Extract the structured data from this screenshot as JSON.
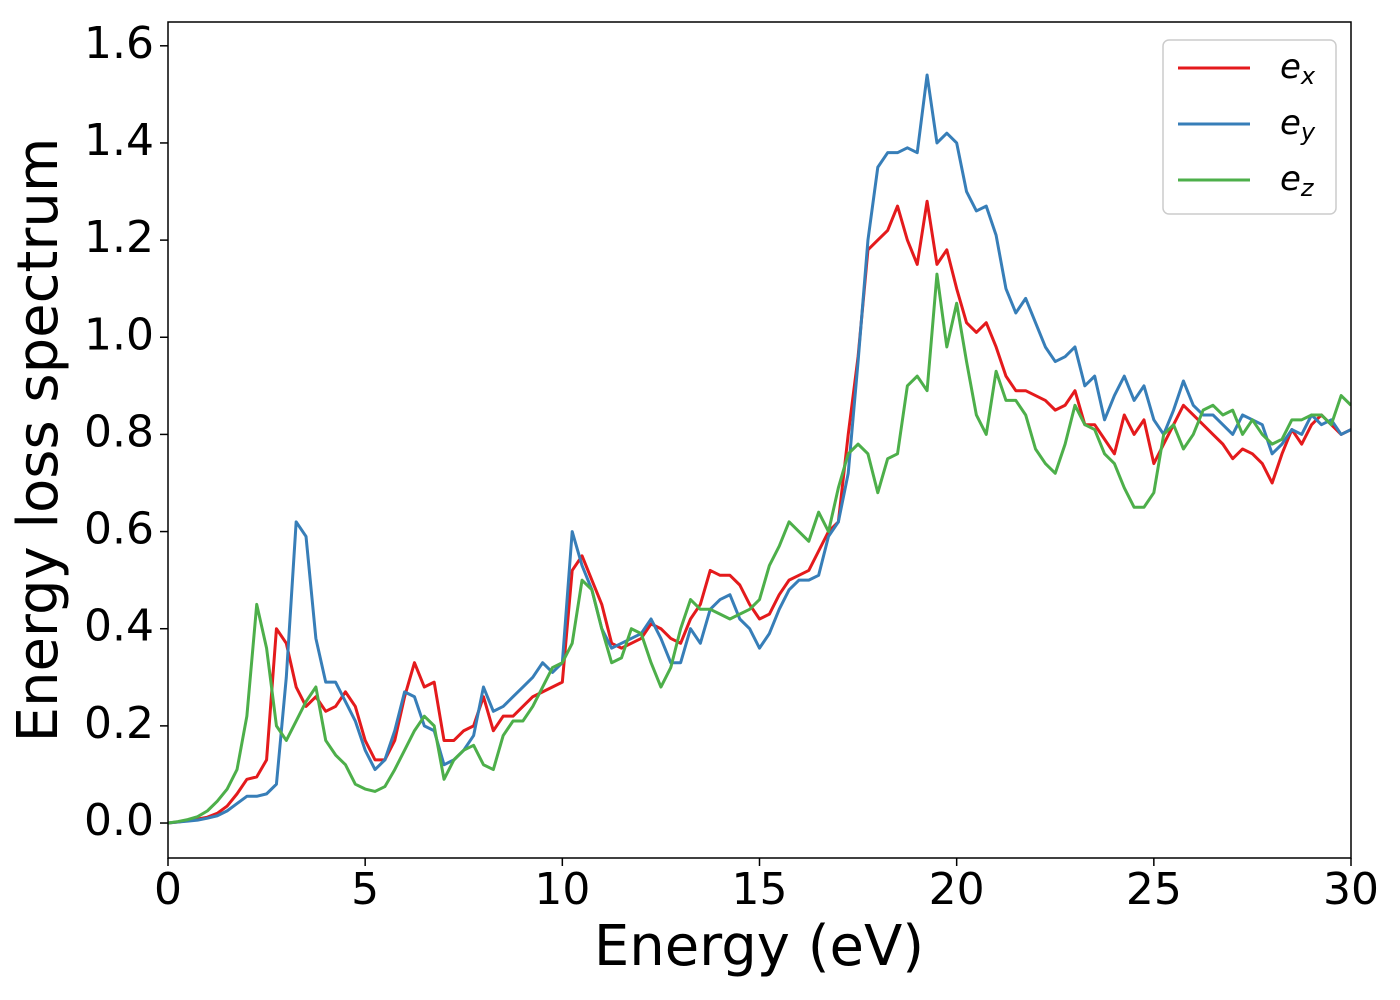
{
  "chart_data": {
    "type": "line",
    "xlabel": "Energy (eV)",
    "ylabel": "Energy loss spectrum",
    "xlim": [
      0,
      30
    ],
    "ylim": [
      -0.072,
      1.649
    ],
    "xticks": [
      0,
      5,
      10,
      15,
      20,
      25,
      30
    ],
    "yticks": [
      {
        "value": 0,
        "label": "0.0"
      },
      0.2,
      0.4,
      0.6,
      0.8,
      {
        "value": 1,
        "label": "1.0"
      },
      1.2,
      1.4,
      1.6
    ],
    "legend": "upper right",
    "grid": false,
    "x": [
      0,
      0.25,
      0.5,
      0.75,
      1,
      1.25,
      1.5,
      1.75,
      2,
      2.25,
      2.5,
      2.75,
      3,
      3.25,
      3.5,
      3.75,
      4,
      4.25,
      4.5,
      4.75,
      5,
      5.25,
      5.5,
      5.75,
      6,
      6.25,
      6.5,
      6.75,
      7,
      7.25,
      7.5,
      7.75,
      8,
      8.25,
      8.5,
      8.75,
      9,
      9.25,
      9.5,
      9.75,
      10,
      10.25,
      10.5,
      10.75,
      11,
      11.25,
      11.5,
      11.75,
      12,
      12.25,
      12.5,
      12.75,
      13,
      13.25,
      13.5,
      13.75,
      14,
      14.25,
      14.5,
      14.75,
      15,
      15.25,
      15.5,
      15.75,
      16,
      16.25,
      16.5,
      16.75,
      17,
      17.25,
      17.5,
      17.75,
      18,
      18.25,
      18.5,
      18.75,
      19,
      19.25,
      19.5,
      19.75,
      20,
      20.25,
      20.5,
      20.75,
      21,
      21.25,
      21.5,
      21.75,
      22,
      22.25,
      22.5,
      22.75,
      23,
      23.25,
      23.5,
      23.75,
      24,
      24.25,
      24.5,
      24.75,
      25,
      25.25,
      25.5,
      25.75,
      26,
      26.25,
      26.5,
      26.75,
      27,
      27.25,
      27.5,
      27.75,
      28,
      28.25,
      28.5,
      28.75,
      29,
      29.25,
      29.5,
      29.75,
      30
    ],
    "series": [
      {
        "name": "ex",
        "color": "#e41a1c",
        "values": [
          0,
          0.002,
          0.005,
          0.008,
          0.012,
          0.02,
          0.035,
          0.06,
          0.09,
          0.095,
          0.13,
          0.4,
          0.37,
          0.28,
          0.24,
          0.26,
          0.23,
          0.24,
          0.27,
          0.24,
          0.17,
          0.13,
          0.13,
          0.17,
          0.26,
          0.33,
          0.28,
          0.29,
          0.17,
          0.17,
          0.19,
          0.2,
          0.26,
          0.19,
          0.22,
          0.22,
          0.24,
          0.26,
          0.27,
          0.28,
          0.29,
          0.52,
          0.55,
          0.5,
          0.45,
          0.37,
          0.36,
          0.37,
          0.38,
          0.41,
          0.4,
          0.38,
          0.37,
          0.42,
          0.45,
          0.52,
          0.51,
          0.51,
          0.49,
          0.45,
          0.42,
          0.43,
          0.47,
          0.5,
          0.51,
          0.52,
          0.56,
          0.6,
          0.62,
          0.8,
          0.96,
          1.18,
          1.2,
          1.22,
          1.27,
          1.2,
          1.15,
          1.28,
          1.15,
          1.18,
          1.1,
          1.03,
          1.01,
          1.03,
          0.98,
          0.92,
          0.89,
          0.89,
          0.88,
          0.87,
          0.85,
          0.86,
          0.89,
          0.82,
          0.82,
          0.79,
          0.76,
          0.84,
          0.8,
          0.83,
          0.74,
          0.78,
          0.82,
          0.86,
          0.84,
          0.82,
          0.8,
          0.78,
          0.75,
          0.77,
          0.76,
          0.74,
          0.7,
          0.76,
          0.81,
          0.78,
          0.82,
          0.84,
          0.82,
          0.8,
          0.81
        ]
      },
      {
        "name": "ey",
        "color": "#377eb8",
        "values": [
          0,
          0.002,
          0.004,
          0.006,
          0.01,
          0.015,
          0.025,
          0.04,
          0.055,
          0.055,
          0.06,
          0.08,
          0.3,
          0.62,
          0.59,
          0.38,
          0.29,
          0.29,
          0.25,
          0.21,
          0.15,
          0.11,
          0.13,
          0.19,
          0.27,
          0.26,
          0.2,
          0.19,
          0.12,
          0.13,
          0.15,
          0.18,
          0.28,
          0.23,
          0.24,
          0.26,
          0.28,
          0.3,
          0.33,
          0.31,
          0.33,
          0.6,
          0.53,
          0.48,
          0.4,
          0.36,
          0.37,
          0.38,
          0.39,
          0.42,
          0.38,
          0.33,
          0.33,
          0.4,
          0.37,
          0.44,
          0.46,
          0.47,
          0.42,
          0.4,
          0.36,
          0.39,
          0.44,
          0.48,
          0.5,
          0.5,
          0.51,
          0.59,
          0.62,
          0.72,
          0.95,
          1.2,
          1.35,
          1.38,
          1.38,
          1.39,
          1.38,
          1.54,
          1.4,
          1.42,
          1.4,
          1.3,
          1.26,
          1.27,
          1.21,
          1.1,
          1.05,
          1.08,
          1.03,
          0.98,
          0.95,
          0.96,
          0.98,
          0.9,
          0.92,
          0.83,
          0.88,
          0.92,
          0.87,
          0.9,
          0.83,
          0.8,
          0.85,
          0.91,
          0.86,
          0.84,
          0.84,
          0.82,
          0.8,
          0.84,
          0.83,
          0.82,
          0.76,
          0.78,
          0.81,
          0.8,
          0.84,
          0.82,
          0.83,
          0.8,
          0.81
        ]
      },
      {
        "name": "ez",
        "color": "#4daf4a",
        "values": [
          0,
          0.003,
          0.007,
          0.013,
          0.025,
          0.045,
          0.07,
          0.11,
          0.22,
          0.45,
          0.36,
          0.2,
          0.17,
          0.21,
          0.25,
          0.28,
          0.17,
          0.14,
          0.12,
          0.08,
          0.07,
          0.065,
          0.075,
          0.11,
          0.15,
          0.19,
          0.22,
          0.2,
          0.09,
          0.13,
          0.15,
          0.16,
          0.12,
          0.11,
          0.18,
          0.21,
          0.21,
          0.24,
          0.28,
          0.32,
          0.33,
          0.37,
          0.5,
          0.48,
          0.4,
          0.33,
          0.34,
          0.4,
          0.39,
          0.33,
          0.28,
          0.32,
          0.4,
          0.46,
          0.44,
          0.44,
          0.43,
          0.42,
          0.43,
          0.44,
          0.46,
          0.53,
          0.57,
          0.62,
          0.6,
          0.58,
          0.64,
          0.6,
          0.69,
          0.76,
          0.78,
          0.76,
          0.68,
          0.75,
          0.76,
          0.9,
          0.92,
          0.89,
          1.13,
          0.98,
          1.07,
          0.95,
          0.84,
          0.8,
          0.93,
          0.87,
          0.87,
          0.84,
          0.77,
          0.74,
          0.72,
          0.78,
          0.86,
          0.82,
          0.81,
          0.76,
          0.74,
          0.69,
          0.65,
          0.65,
          0.68,
          0.8,
          0.82,
          0.77,
          0.8,
          0.85,
          0.86,
          0.84,
          0.85,
          0.8,
          0.83,
          0.8,
          0.78,
          0.79,
          0.83,
          0.83,
          0.84,
          0.84,
          0.82,
          0.88,
          0.86
        ]
      }
    ]
  }
}
